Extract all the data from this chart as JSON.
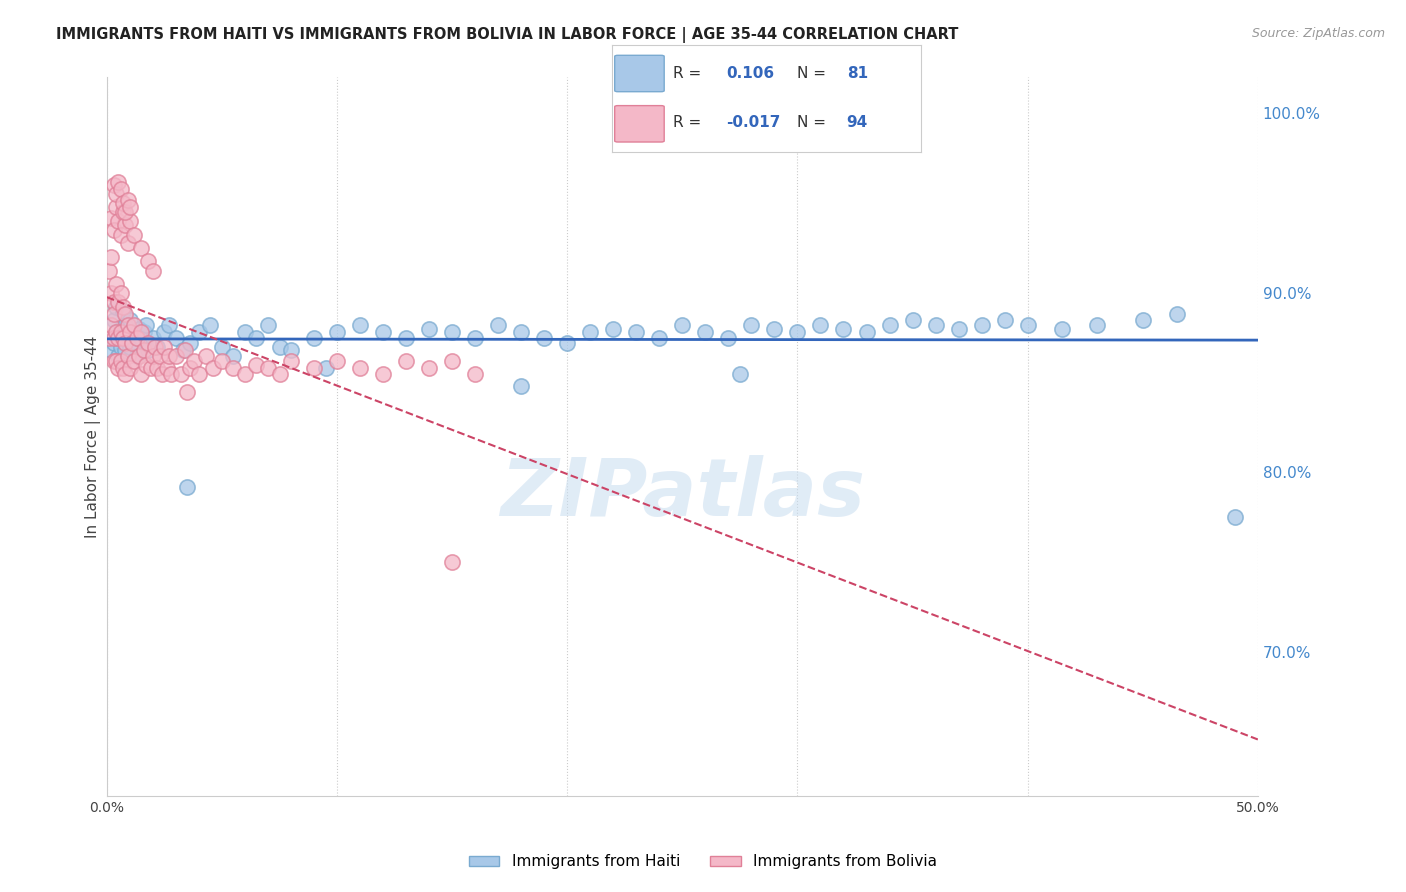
{
  "title": "IMMIGRANTS FROM HAITI VS IMMIGRANTS FROM BOLIVIA IN LABOR FORCE | AGE 35-44 CORRELATION CHART",
  "source": "Source: ZipAtlas.com",
  "ylabel": "In Labor Force | Age 35-44",
  "xlim": [
    0.0,
    0.5
  ],
  "ylim": [
    0.62,
    1.02
  ],
  "xticks": [
    0.0,
    0.1,
    0.2,
    0.3,
    0.4,
    0.5
  ],
  "xticklabels": [
    "0.0%",
    "",
    "",
    "",
    "",
    "50.0%"
  ],
  "yticks": [
    0.7,
    0.8,
    0.9,
    1.0
  ],
  "yticklabels": [
    "70.0%",
    "80.0%",
    "90.0%",
    "100.0%"
  ],
  "haiti_R": 0.106,
  "haiti_N": 81,
  "bolivia_R": -0.017,
  "bolivia_N": 94,
  "haiti_color": "#a8c8e8",
  "haiti_edge_color": "#7aaad0",
  "bolivia_color": "#f4b8c8",
  "bolivia_edge_color": "#e08098",
  "haiti_line_color": "#3366bb",
  "bolivia_line_color": "#cc4466",
  "watermark": "ZIPatlas",
  "haiti_scatter_x": [
    0.002,
    0.003,
    0.003,
    0.004,
    0.004,
    0.005,
    0.005,
    0.006,
    0.006,
    0.007,
    0.007,
    0.008,
    0.008,
    0.009,
    0.01,
    0.01,
    0.011,
    0.012,
    0.013,
    0.014,
    0.015,
    0.016,
    0.017,
    0.018,
    0.02,
    0.022,
    0.025,
    0.027,
    0.03,
    0.033,
    0.036,
    0.04,
    0.045,
    0.05,
    0.055,
    0.06,
    0.065,
    0.07,
    0.075,
    0.08,
    0.09,
    0.1,
    0.11,
    0.12,
    0.13,
    0.14,
    0.15,
    0.16,
    0.17,
    0.18,
    0.19,
    0.2,
    0.21,
    0.22,
    0.23,
    0.24,
    0.25,
    0.26,
    0.27,
    0.28,
    0.29,
    0.3,
    0.31,
    0.32,
    0.33,
    0.34,
    0.35,
    0.36,
    0.37,
    0.38,
    0.39,
    0.4,
    0.415,
    0.43,
    0.45,
    0.465,
    0.275,
    0.18,
    0.095,
    0.035,
    0.49
  ],
  "haiti_scatter_y": [
    0.868,
    0.872,
    0.885,
    0.878,
    0.892,
    0.875,
    0.865,
    0.88,
    0.87,
    0.875,
    0.89,
    0.868,
    0.882,
    0.875,
    0.87,
    0.885,
    0.878,
    0.872,
    0.865,
    0.88,
    0.875,
    0.878,
    0.882,
    0.868,
    0.875,
    0.87,
    0.878,
    0.882,
    0.875,
    0.868,
    0.872,
    0.878,
    0.882,
    0.87,
    0.865,
    0.878,
    0.875,
    0.882,
    0.87,
    0.868,
    0.875,
    0.878,
    0.882,
    0.878,
    0.875,
    0.88,
    0.878,
    0.875,
    0.882,
    0.878,
    0.875,
    0.872,
    0.878,
    0.88,
    0.878,
    0.875,
    0.882,
    0.878,
    0.875,
    0.882,
    0.88,
    0.878,
    0.882,
    0.88,
    0.878,
    0.882,
    0.885,
    0.882,
    0.88,
    0.882,
    0.885,
    0.882,
    0.88,
    0.882,
    0.885,
    0.888,
    0.855,
    0.848,
    0.858,
    0.792,
    0.775
  ],
  "bolivia_scatter_x": [
    0.001,
    0.001,
    0.002,
    0.002,
    0.002,
    0.003,
    0.003,
    0.003,
    0.003,
    0.004,
    0.004,
    0.004,
    0.005,
    0.005,
    0.005,
    0.006,
    0.006,
    0.006,
    0.007,
    0.007,
    0.007,
    0.008,
    0.008,
    0.008,
    0.009,
    0.009,
    0.01,
    0.01,
    0.011,
    0.012,
    0.012,
    0.013,
    0.014,
    0.015,
    0.015,
    0.016,
    0.017,
    0.018,
    0.019,
    0.02,
    0.021,
    0.022,
    0.023,
    0.024,
    0.025,
    0.026,
    0.027,
    0.028,
    0.03,
    0.032,
    0.034,
    0.036,
    0.038,
    0.04,
    0.043,
    0.046,
    0.05,
    0.055,
    0.06,
    0.065,
    0.07,
    0.075,
    0.08,
    0.09,
    0.1,
    0.11,
    0.12,
    0.13,
    0.14,
    0.15,
    0.16,
    0.002,
    0.003,
    0.004,
    0.005,
    0.006,
    0.007,
    0.008,
    0.009,
    0.01,
    0.012,
    0.015,
    0.018,
    0.02,
    0.003,
    0.004,
    0.005,
    0.006,
    0.007,
    0.008,
    0.009,
    0.01,
    0.035,
    0.15
  ],
  "bolivia_scatter_y": [
    0.875,
    0.912,
    0.9,
    0.92,
    0.882,
    0.895,
    0.875,
    0.888,
    0.862,
    0.905,
    0.878,
    0.862,
    0.895,
    0.875,
    0.858,
    0.9,
    0.878,
    0.862,
    0.892,
    0.875,
    0.858,
    0.888,
    0.872,
    0.855,
    0.882,
    0.865,
    0.878,
    0.858,
    0.872,
    0.882,
    0.862,
    0.875,
    0.865,
    0.878,
    0.855,
    0.868,
    0.86,
    0.872,
    0.858,
    0.865,
    0.87,
    0.858,
    0.865,
    0.855,
    0.87,
    0.858,
    0.865,
    0.855,
    0.865,
    0.855,
    0.868,
    0.858,
    0.862,
    0.855,
    0.865,
    0.858,
    0.862,
    0.858,
    0.855,
    0.86,
    0.858,
    0.855,
    0.862,
    0.858,
    0.862,
    0.858,
    0.855,
    0.862,
    0.858,
    0.862,
    0.855,
    0.942,
    0.935,
    0.948,
    0.94,
    0.932,
    0.945,
    0.938,
    0.928,
    0.94,
    0.932,
    0.925,
    0.918,
    0.912,
    0.96,
    0.955,
    0.962,
    0.958,
    0.95,
    0.945,
    0.952,
    0.948,
    0.845,
    0.75
  ]
}
